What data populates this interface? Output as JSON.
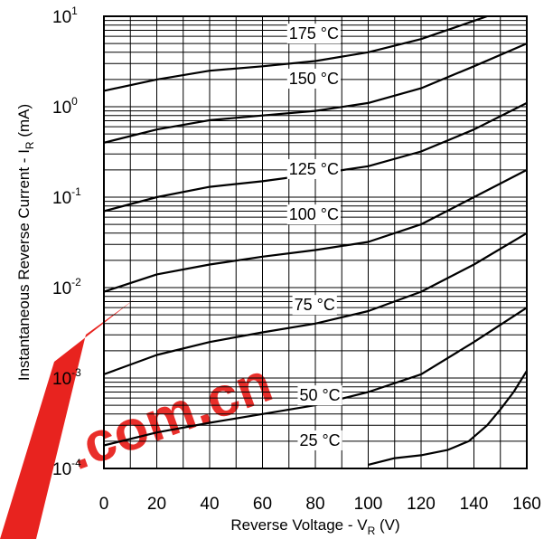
{
  "chart_data": {
    "type": "line",
    "xlabel": "Reverse Voltage - V",
    "xlabel_sub": "R",
    "xlabel_unit": "(V)",
    "ylabel": "Instantaneous Reverse Current - I",
    "ylabel_sub": "R",
    "ylabel_unit": "(mA)",
    "xlim": [
      0,
      160
    ],
    "ylim": [
      0.0001,
      10
    ],
    "y_scale": "log",
    "grid": true,
    "x_ticks": [
      0,
      20,
      40,
      60,
      80,
      100,
      120,
      140,
      160
    ],
    "x_tick_labels": [
      "0",
      "20",
      "40",
      "60",
      "80",
      "100",
      "120",
      "140",
      "160"
    ],
    "y_ticks": [
      {
        "value": 0.0001,
        "base": "10",
        "exp": "-4"
      },
      {
        "value": 0.001,
        "base": "10",
        "exp": "-3"
      },
      {
        "value": 0.01,
        "base": "10",
        "exp": "-2"
      },
      {
        "value": 0.1,
        "base": "10",
        "exp": "-1"
      },
      {
        "value": 1,
        "base": "10",
        "exp": "0"
      },
      {
        "value": 10,
        "base": "10",
        "exp": "1"
      }
    ],
    "series": [
      {
        "name": "175 °C",
        "label_at": [
          70,
          5.6
        ],
        "x": [
          0,
          20,
          40,
          60,
          80,
          100,
          120,
          140,
          145
        ],
        "y": [
          1.5,
          2.0,
          2.5,
          2.8,
          3.2,
          4.0,
          5.6,
          8.9,
          10
        ]
      },
      {
        "name": "150 °C",
        "label_at": [
          70,
          1.78
        ],
        "x": [
          0,
          20,
          40,
          60,
          80,
          100,
          120,
          140,
          160
        ],
        "y": [
          0.4,
          0.56,
          0.71,
          0.8,
          0.9,
          1.1,
          1.6,
          2.8,
          5.0
        ]
      },
      {
        "name": "125 °C",
        "label_at": [
          70,
          0.178
        ],
        "x": [
          0,
          20,
          40,
          60,
          80,
          100,
          120,
          140,
          160
        ],
        "y": [
          0.07,
          0.1,
          0.13,
          0.15,
          0.18,
          0.22,
          0.32,
          0.56,
          1.1
        ]
      },
      {
        "name": "100 °C",
        "label_at": [
          70,
          0.056
        ],
        "x": [
          0,
          20,
          40,
          60,
          80,
          100,
          120,
          140,
          160
        ],
        "y": [
          0.009,
          0.014,
          0.018,
          0.022,
          0.026,
          0.032,
          0.05,
          0.1,
          0.2
        ]
      },
      {
        "name": "75 °C",
        "label_at": [
          72,
          0.0056
        ],
        "x": [
          0,
          20,
          40,
          60,
          80,
          100,
          120,
          140,
          160
        ],
        "y": [
          0.0011,
          0.0018,
          0.0025,
          0.0032,
          0.004,
          0.0055,
          0.009,
          0.018,
          0.04
        ]
      },
      {
        "name": "50 °C",
        "label_at": [
          74,
          0.00056
        ],
        "x": [
          0,
          20,
          40,
          60,
          80,
          100,
          120,
          140,
          160
        ],
        "y": [
          0.00018,
          0.00025,
          0.00032,
          0.0004,
          0.0005,
          0.0007,
          0.0011,
          0.0025,
          0.006
        ]
      },
      {
        "name": "25 °C",
        "label_at": [
          74,
          0.000178
        ],
        "x": [
          100,
          110,
          120,
          130,
          138,
          145,
          150,
          155,
          160
        ],
        "y": [
          0.00011,
          0.00013,
          0.00014,
          0.00016,
          0.0002,
          0.0003,
          0.00045,
          0.0007,
          0.0012
        ]
      }
    ]
  },
  "watermark": {
    "text": ".com.cn",
    "color": "#e8231f"
  }
}
